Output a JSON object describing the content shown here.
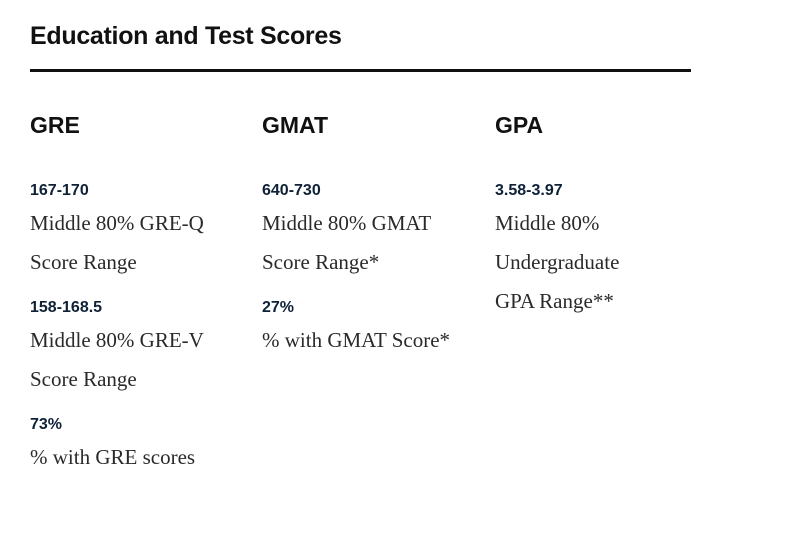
{
  "section": {
    "title": "Education and Test Scores"
  },
  "columns": [
    {
      "heading": "GRE",
      "stats": [
        {
          "value": "167-170",
          "desc": "Middle 80% GRE-Q Score Range"
        },
        {
          "value": "158-168.5",
          "desc": "Middle 80% GRE-V Score Range"
        },
        {
          "value": "73%",
          "desc": "% with GRE scores"
        }
      ]
    },
    {
      "heading": "GMAT",
      "stats": [
        {
          "value": "640-730",
          "desc": "Middle 80% GMAT Score Range*"
        },
        {
          "value": "27%",
          "desc": "% with GMAT Score*"
        }
      ]
    },
    {
      "heading": "GPA",
      "stats": [
        {
          "value": "3.58-3.97",
          "desc": "Middle 80% Undergraduate GPA Range**"
        }
      ]
    }
  ],
  "colors": {
    "value_text": "#0f2137",
    "rule": "#111111"
  }
}
